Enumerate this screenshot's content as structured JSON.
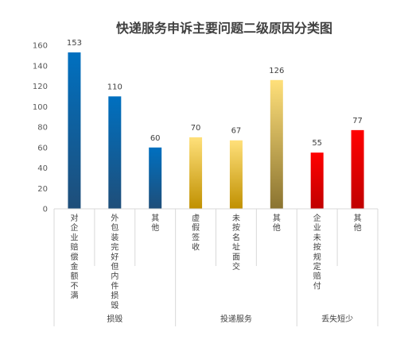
{
  "colors": {
    "blue_top": "#0070C0",
    "blue_bottom": "#1F4E79",
    "gold_top": "#FFE07A",
    "gold_bottom": "#C09000",
    "olive_bottom": "#8A7330",
    "red_top": "#FF0000",
    "red_bottom": "#C00000",
    "axis": "#D9D9D9"
  },
  "chart_data": {
    "type": "bar",
    "title": "快递服务申诉主要问题二级原因分类图",
    "ylim": [
      0,
      160
    ],
    "yticks": [
      0,
      20,
      40,
      60,
      80,
      100,
      120,
      140,
      160
    ],
    "grid": false,
    "legend": "none",
    "categories": [
      "对企业赔偿金额不满",
      "外包装完好但内件损毁",
      "其他",
      "虚假签收",
      "未按名址面交",
      "其他",
      "企业未按规定赔付",
      "其他"
    ],
    "values": [
      153,
      110,
      60,
      70,
      67,
      126,
      55,
      77
    ],
    "bar_colors": [
      "blue",
      "blue",
      "blue",
      "gold",
      "gold",
      "olive",
      "red",
      "red"
    ],
    "groups": [
      {
        "label": "损毁",
        "start": 0,
        "end": 2
      },
      {
        "label": "投递服务",
        "start": 3,
        "end": 5
      },
      {
        "label": "丢失短少",
        "start": 6,
        "end": 7
      }
    ]
  }
}
